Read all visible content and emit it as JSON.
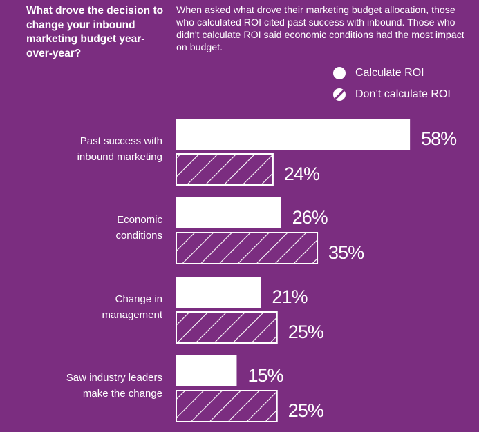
{
  "header": {
    "question": "What drove the decision to change your inbound marketing budget year-over-year?",
    "intro": "When asked what drove their marketing budget allocation, those who calculated ROI cited past success with inbound. Those who didn't calculate ROI said economic conditions had the most impact on budget."
  },
  "colors": {
    "background": "#7b2d80",
    "bar": "#ffffff"
  },
  "chart_data": {
    "type": "bar",
    "orientation": "horizontal",
    "categories": [
      [
        "Past success with",
        "inbound marketing"
      ],
      [
        "Economic",
        "conditions"
      ],
      [
        "Change in",
        "management"
      ],
      [
        "Saw industry leaders",
        "make the change"
      ]
    ],
    "series": [
      {
        "name": "Calculate ROI",
        "style": "solid",
        "values": [
          58,
          26,
          21,
          15
        ]
      },
      {
        "name": "Don’t calculate ROI",
        "style": "hatched",
        "values": [
          24,
          35,
          25,
          25
        ]
      }
    ],
    "value_labels": [
      [
        "58%",
        "24%"
      ],
      [
        "26%",
        "35%"
      ],
      [
        "21%",
        "25%"
      ],
      [
        "15%",
        "25%"
      ]
    ],
    "xlim": [
      0,
      100
    ],
    "legend_position": "top-right",
    "grid": false
  }
}
